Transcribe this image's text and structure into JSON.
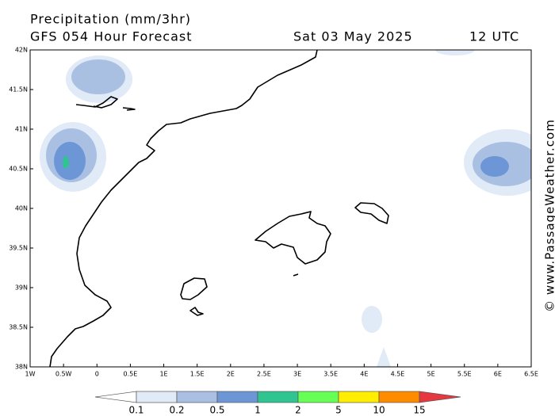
{
  "header": {
    "title": "Precipitation (mm/3hr)",
    "subtitle": "GFS 054 Hour Forecast",
    "date": "Sat 03 May 2025",
    "time": "12 UTC"
  },
  "map": {
    "lat_labels": [
      "42N",
      "41.5N",
      "41N",
      "40.5N",
      "40N",
      "39.5N",
      "39N",
      "38.5N",
      "38N"
    ],
    "lon_labels": [
      "1W",
      "0.5W",
      "0",
      "0.5E",
      "1E",
      "1.5E",
      "2E",
      "2.5E",
      "3E",
      "3.5E",
      "4E",
      "4.5E",
      "5E",
      "5.5E",
      "6E",
      "6.5E"
    ]
  },
  "colorbar": {
    "labels": [
      0.1,
      0.2,
      0.5,
      1,
      2,
      5,
      10,
      15
    ],
    "colors": [
      "#ffffff",
      "#e1eaf7",
      "#a9c0e2",
      "#6d96d6",
      "#2fc490",
      "#66ff55",
      "#ffee00",
      "#ff8c00",
      "#e8383f"
    ]
  },
  "watermark": "© www.PassageWeather.com"
}
